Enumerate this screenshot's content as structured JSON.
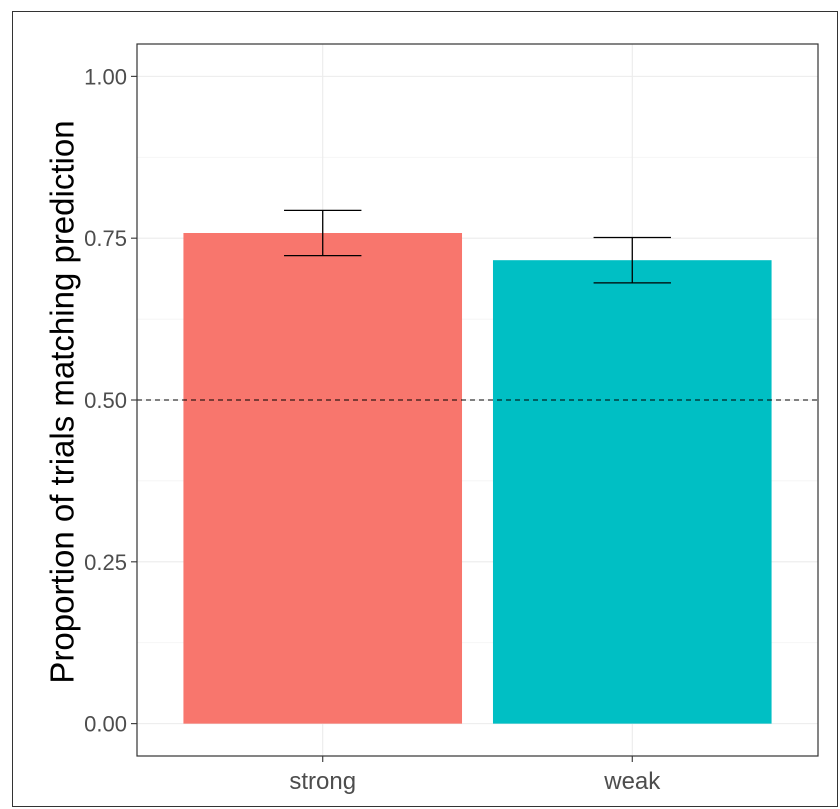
{
  "chart_data": {
    "type": "bar",
    "categories": [
      "strong",
      "weak"
    ],
    "values": [
      0.758,
      0.716
    ],
    "error_low": [
      0.723,
      0.681
    ],
    "error_high": [
      0.793,
      0.751
    ],
    "bar_colors": [
      "#F8766D",
      "#00BFC4"
    ],
    "ylabel": "Proportion of trials matching prediction",
    "xlabel": "",
    "ylim": [
      -0.05,
      1.05
    ],
    "yticks": [
      0.0,
      0.25,
      0.5,
      0.75,
      1.0
    ],
    "ytick_labels": [
      "0.00",
      "0.25",
      "0.50",
      "0.75",
      "1.00"
    ],
    "reference_line": {
      "y": 0.5,
      "style": "dashed"
    },
    "grid": true,
    "legend": "none"
  }
}
